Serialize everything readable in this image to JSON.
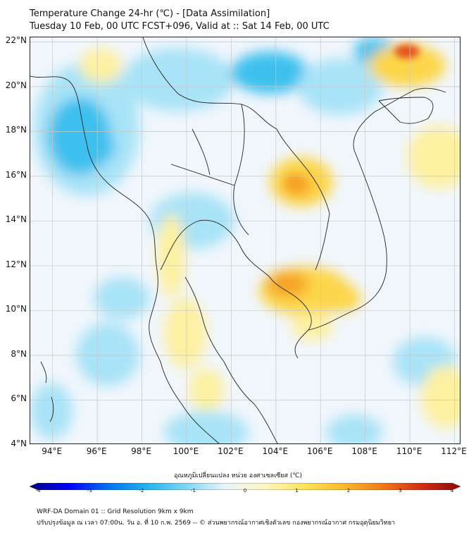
{
  "header": {
    "title_line1": "Temperature Change 24-hr (℃) - [Data Assimilation]",
    "title_line2": "Tuesday 10 Feb, 00 UTC FCST+096, Valid at :: Sat 14 Feb, 00 UTC"
  },
  "map": {
    "lat_labels": [
      "22°N",
      "20°N",
      "18°N",
      "16°N",
      "14°N",
      "12°N",
      "10°N",
      "8°N",
      "6°N",
      "4°N"
    ],
    "lon_labels": [
      "94°E",
      "96°E",
      "98°E",
      "100°E",
      "102°E",
      "104°E",
      "106°E",
      "108°E",
      "110°E",
      "112°E"
    ],
    "lon_range": [
      93,
      112.3
    ],
    "lat_range": [
      4,
      22.2
    ],
    "field_colors": {
      "background": "#f1f6fc",
      "cold_strong": "#3cc0ee",
      "cold_light": "#a8e3f7",
      "warm_light": "#fdf0a0",
      "warm_mid": "#fcd64a",
      "warm_strong": "#f6a224",
      "hot": "#e4521b"
    }
  },
  "colorbar": {
    "title": "อุณหภูมิเปลี่ยนแปลง หน่วย องศาเซลเซียส (℃)",
    "ticks": [
      "-4",
      "-3",
      "-2",
      "-1",
      "0",
      "1",
      "2",
      "3",
      "4"
    ],
    "min": -4,
    "max": 4,
    "colors": [
      "#000080",
      "#0000ff",
      "#0070f0",
      "#22b4ef",
      "#7fd7f5",
      "#e8f4fb",
      "#fff6c0",
      "#ffe45a",
      "#fbb92a",
      "#f07a1a",
      "#d42c12",
      "#8b0a0a"
    ]
  },
  "footer": {
    "line1": "WRF-DA Domain 01 :: Grid Resolution 9km x 9km",
    "line2": "ปรับปรุงข้อมูล ณ เวลา 07:00น. วัน อ. ที่ 10 ก.พ. 2569 -- © ส่วนพยากรณ์อากาศเชิงตัวเลข กองพยากรณ์อากาศ กรมอุตุนิยมวิทยา"
  }
}
